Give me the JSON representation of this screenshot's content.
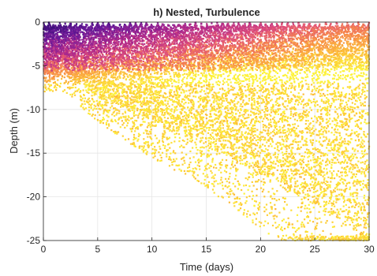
{
  "chart_data": {
    "type": "heatmap",
    "title": "h) Nested, Turbulence",
    "xlabel": "Time (days)",
    "ylabel": "Depth (m)",
    "xlim": [
      0,
      30
    ],
    "ylim": [
      -25,
      0
    ],
    "xticks": [
      "0",
      "5",
      "10",
      "15",
      "20",
      "25",
      "30"
    ],
    "yticks": [
      "0",
      "-5",
      "-10",
      "-15",
      "-20",
      "-25"
    ],
    "grid": true,
    "colormap": [
      "#2a0a6b",
      "#6a1a9a",
      "#b02a8c",
      "#e0507a",
      "#f7894a",
      "#fdc03a",
      "#fdf23a"
    ],
    "surface_oscillation_period_days": 0.5,
    "surface_dark_band_depth_m": 5,
    "spread_front": [
      {
        "time": 0,
        "depth": -6
      },
      {
        "time": 2,
        "depth": -6
      },
      {
        "time": 5,
        "depth": -8.5
      },
      {
        "time": 10,
        "depth": -11.5
      },
      {
        "time": 15,
        "depth": -14
      },
      {
        "time": 20,
        "depth": -17.5
      },
      {
        "time": 25,
        "depth": -21
      },
      {
        "time": 30,
        "depth": -25
      }
    ]
  }
}
